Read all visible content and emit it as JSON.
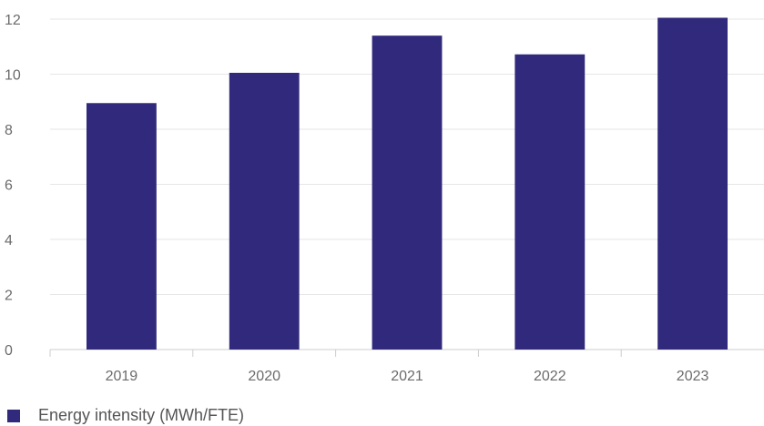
{
  "chart_data": {
    "type": "bar",
    "categories": [
      "2019",
      "2020",
      "2021",
      "2022",
      "2023"
    ],
    "series": [
      {
        "name": "Energy intensity (MWh/FTE)",
        "values": [
          8.95,
          10.05,
          11.4,
          10.72,
          12.05
        ],
        "color": "#312a7c"
      }
    ],
    "ylim": [
      0,
      12
    ],
    "yticks": [
      "0",
      "2",
      "4",
      "6",
      "8",
      "10",
      "12"
    ],
    "grid": true,
    "legend": "bottom-left",
    "xlabel": "",
    "ylabel": "",
    "title": ""
  }
}
